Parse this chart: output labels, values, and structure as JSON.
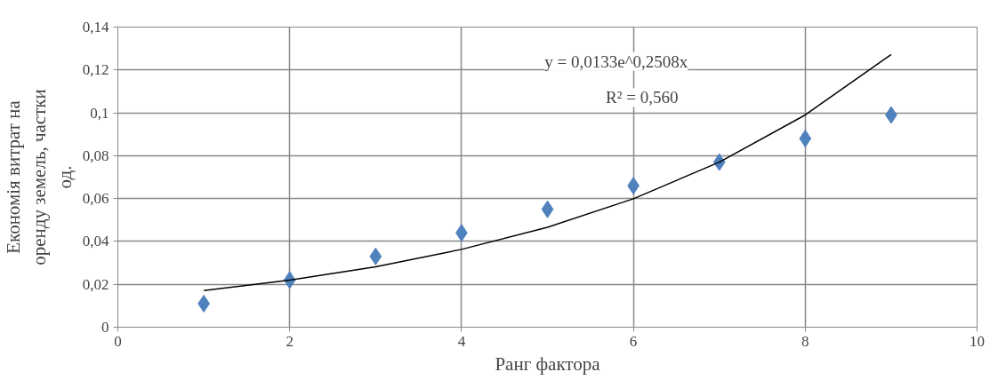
{
  "chart_data": {
    "type": "scatter",
    "xlabel": "Ранг фактора",
    "ylabel": "Економія витрат на оренду земель, частки од.",
    "xlim": [
      0,
      10
    ],
    "xticks": [
      0,
      2,
      4,
      6,
      8,
      10
    ],
    "ylim": [
      0,
      0.14
    ],
    "yticks": [
      {
        "value": 0,
        "label": "0"
      },
      {
        "value": 0.02,
        "label": "0,02"
      },
      {
        "value": 0.04,
        "label": "0,04"
      },
      {
        "value": 0.06,
        "label": "0,06"
      },
      {
        "value": 0.08,
        "label": "0,08"
      },
      {
        "value": 0.1,
        "label": "0,1"
      },
      {
        "value": 0.12,
        "label": "0,12"
      },
      {
        "value": 0.14,
        "label": "0,14"
      }
    ],
    "grid": true,
    "series": [
      {
        "marker": "diamond",
        "color": "#4f81bd",
        "x": [
          1,
          2,
          3,
          4,
          5,
          6,
          7,
          8,
          9
        ],
        "values": [
          0.011,
          0.022,
          0.033,
          0.044,
          0.055,
          0.066,
          0.077,
          0.088,
          0.099
        ]
      },
      {
        "type": "line",
        "color": "#000000",
        "line_style": "solid",
        "x": [
          1,
          2,
          3,
          4,
          5,
          6,
          7,
          8,
          9
        ],
        "values": [
          0.0171,
          0.022,
          0.0282,
          0.0363,
          0.0466,
          0.0599,
          0.077,
          0.099,
          0.1272
        ]
      }
    ],
    "annotations": [
      "y = 0,0133e^0,2508x",
      "R² = 0,560"
    ]
  }
}
